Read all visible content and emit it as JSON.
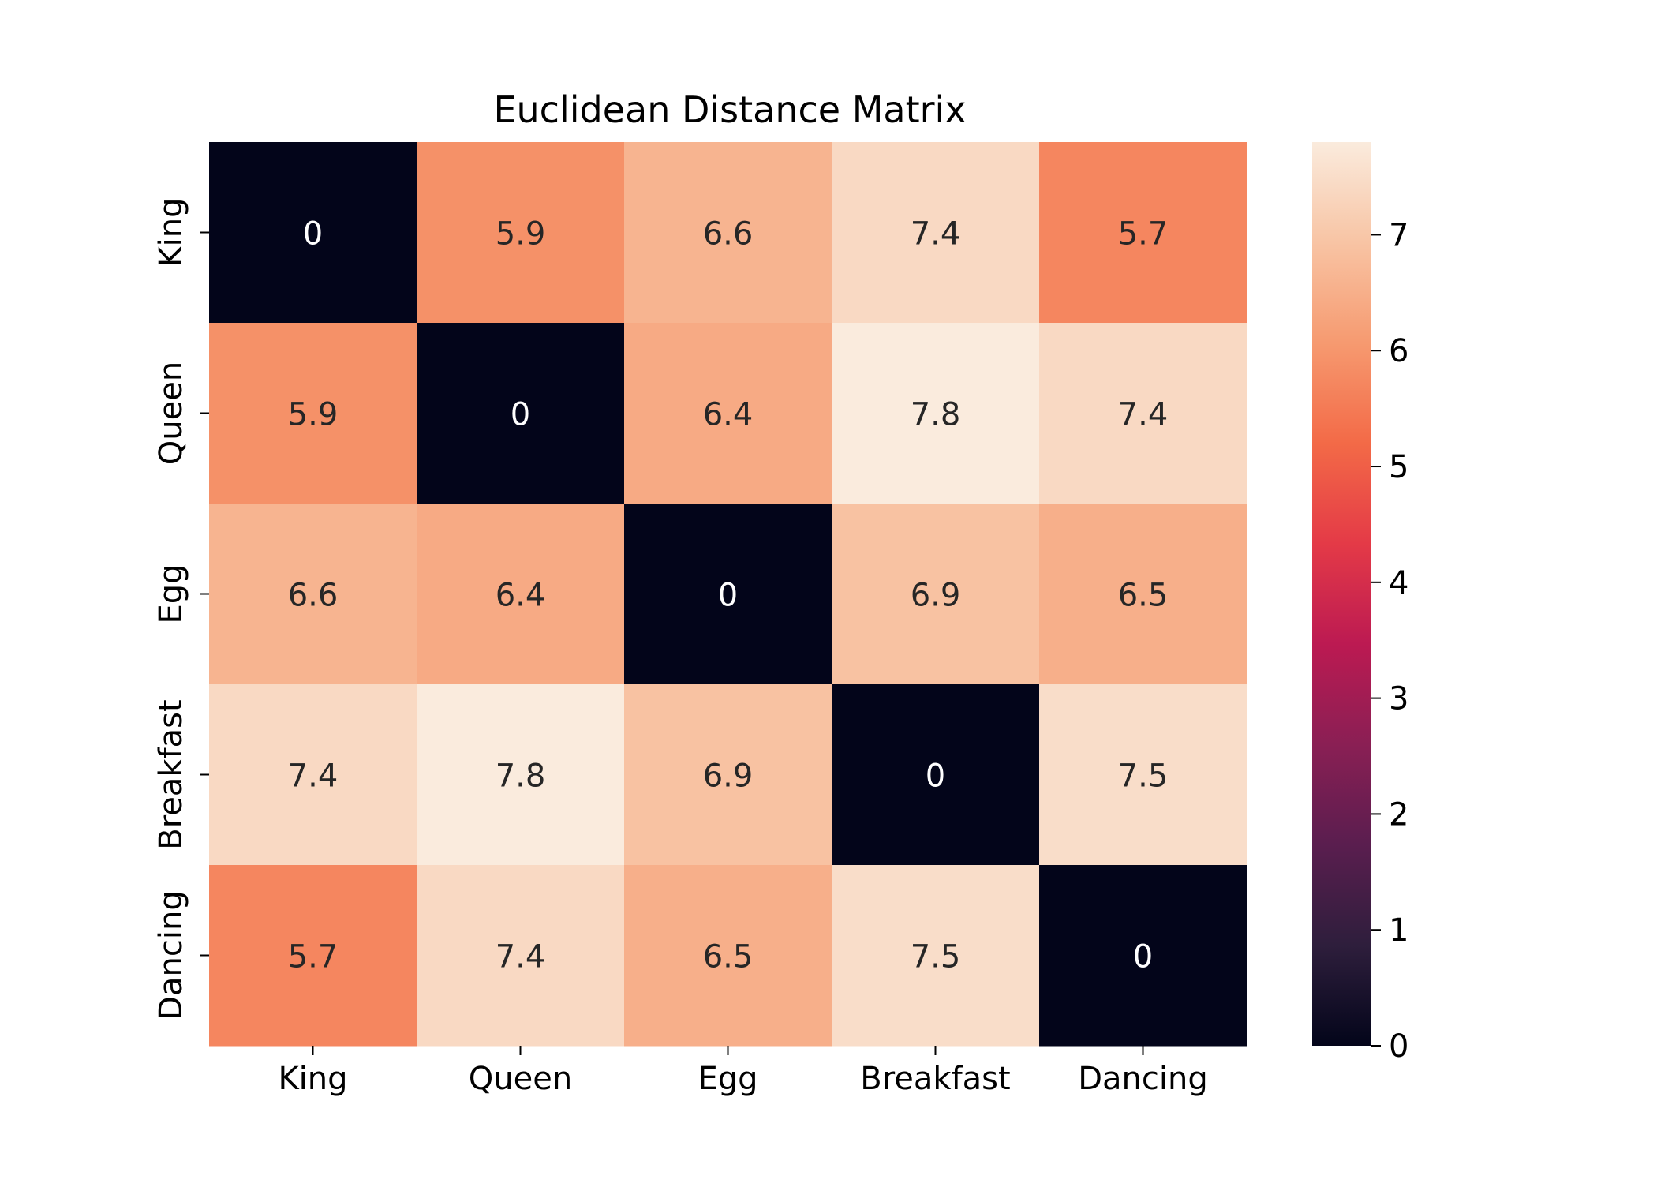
{
  "chart_data": {
    "type": "heatmap",
    "title": "Euclidean Distance Matrix",
    "xlabel": "",
    "ylabel": "",
    "x_categories": [
      "King",
      "Queen",
      "Egg",
      "Breakfast",
      "Dancing"
    ],
    "y_categories": [
      "King",
      "Queen",
      "Egg",
      "Breakfast",
      "Dancing"
    ],
    "values": [
      [
        0,
        5.9,
        6.6,
        7.4,
        5.7
      ],
      [
        5.9,
        0,
        6.4,
        7.8,
        7.4
      ],
      [
        6.6,
        6.4,
        0,
        6.9,
        6.5
      ],
      [
        7.4,
        7.8,
        6.9,
        0,
        7.5
      ],
      [
        5.7,
        7.4,
        6.5,
        7.5,
        0
      ]
    ],
    "annotations": [
      [
        "0",
        "5.9",
        "6.6",
        "7.4",
        "5.7"
      ],
      [
        "5.9",
        "0",
        "6.4",
        "7.8",
        "7.4"
      ],
      [
        "6.6",
        "6.4",
        "0",
        "6.9",
        "6.5"
      ],
      [
        "7.4",
        "7.8",
        "6.9",
        "0",
        "7.5"
      ],
      [
        "5.7",
        "7.4",
        "6.5",
        "7.5",
        "0"
      ]
    ],
    "colorbar": {
      "min": 0,
      "max": 7.8,
      "ticks": [
        0,
        1,
        2,
        3,
        4,
        5,
        6,
        7
      ],
      "colormap": "rocket",
      "colormap_stops": [
        "#03051a",
        "#2e1e3c",
        "#5a1e4f",
        "#8a1f54",
        "#bc1a52",
        "#e43a47",
        "#f36a47",
        "#f69a70",
        "#f8c4a4",
        "#faebdd"
      ]
    },
    "grid": false,
    "legend": "colorbar-right"
  }
}
